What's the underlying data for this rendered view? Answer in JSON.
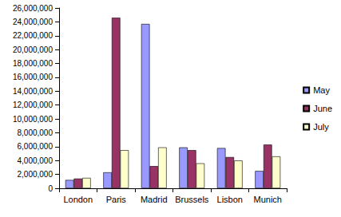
{
  "chart_data": {
    "type": "bar",
    "categories": [
      "London",
      "Paris",
      "Madrid",
      "Brussels",
      "Lisbon",
      "Munich"
    ],
    "series": [
      {
        "name": "May",
        "color": "#9999ff",
        "values": [
          1200000,
          2300000,
          23700000,
          5900000,
          5800000,
          2500000
        ]
      },
      {
        "name": "June",
        "color": "#993366",
        "values": [
          1400000,
          24600000,
          3200000,
          5500000,
          4500000,
          6300000
        ]
      },
      {
        "name": "July",
        "color": "#ffffcc",
        "values": [
          1500000,
          5500000,
          5900000,
          3600000,
          4000000,
          4600000
        ]
      }
    ],
    "ylim": [
      0,
      26000000
    ],
    "yticks": [
      0,
      {
        "value": 2000000,
        "label": "2,000,000"
      },
      {
        "value": 4000000,
        "label": "4,000,000"
      },
      {
        "value": 6000000,
        "label": "6,000,000"
      },
      {
        "value": 8000000,
        "label": "8,000,000"
      },
      {
        "value": 10000000,
        "label": "10,000,000"
      },
      {
        "value": 12000000,
        "label": "12,000,000"
      },
      {
        "value": 14000000,
        "label": "14,000,000"
      },
      {
        "value": 16000000,
        "label": "16,000,000"
      },
      {
        "value": 18000000,
        "label": "18,000,000"
      },
      {
        "value": 20000000,
        "label": "20,000,000"
      },
      {
        "value": 22000000,
        "label": "22,000,000"
      },
      {
        "value": 24000000,
        "label": "24,000,000"
      },
      {
        "value": 26000000,
        "label": "26,000,000"
      }
    ],
    "grid": false,
    "legend": "right"
  }
}
